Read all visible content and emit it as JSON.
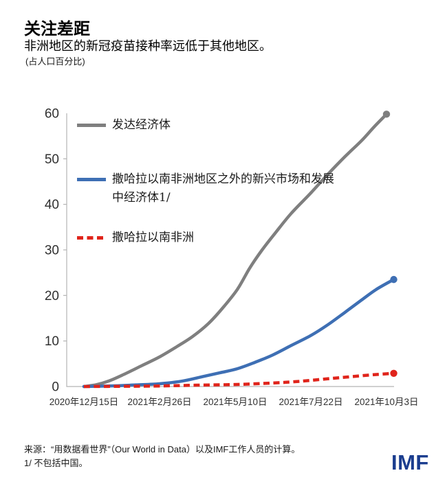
{
  "chart_data": {
    "type": "line",
    "title": "关注差距",
    "subtitle": "非洲地区的新冠疫苗接种率远低于其他地区。",
    "unit_label": "(占人口百分比)",
    "grid": false,
    "legend_position": "inside-top-left",
    "x_axis": {
      "unit": "days since 2020-12-15",
      "ticks": [
        {
          "day": 0,
          "label": "2020年12月15日"
        },
        {
          "day": 73,
          "label": "2021年2月26日"
        },
        {
          "day": 146,
          "label": "2021年5月10日"
        },
        {
          "day": 219,
          "label": "2021年7月22日"
        },
        {
          "day": 292,
          "label": "2021年10月3日"
        }
      ]
    },
    "y_axis": {
      "ticks": [
        0,
        10,
        20,
        30,
        40,
        50,
        60
      ],
      "lim": [
        0,
        60
      ]
    },
    "axis_color": "#b3b3b3",
    "series": [
      {
        "key": "advanced-economies",
        "name": "发达经济体",
        "color": "#7f7f7f",
        "style": "solid",
        "end_value": 59.8,
        "points": [
          [
            0,
            0
          ],
          [
            12,
            0.4
          ],
          [
            24,
            1.2
          ],
          [
            38,
            2.6
          ],
          [
            56,
            4.6
          ],
          [
            73,
            6.5
          ],
          [
            90,
            8.8
          ],
          [
            105,
            11
          ],
          [
            120,
            13.8
          ],
          [
            133,
            17
          ],
          [
            148,
            21.3
          ],
          [
            160,
            26
          ],
          [
            172,
            30
          ],
          [
            185,
            33.8
          ],
          [
            200,
            38
          ],
          [
            219,
            42.5
          ],
          [
            235,
            46.5
          ],
          [
            252,
            50.5
          ],
          [
            268,
            54
          ],
          [
            280,
            57
          ],
          [
            292,
            59.8
          ]
        ]
      },
      {
        "key": "emde-excl-ssa",
        "name": "撒哈拉以南非洲地区之外的新兴市场和发展中经济体1/",
        "color": "#3e6fb4",
        "style": "solid",
        "end_value": 23.5,
        "points": [
          [
            0,
            0
          ],
          [
            30,
            0.15
          ],
          [
            50,
            0.35
          ],
          [
            73,
            0.6
          ],
          [
            95,
            1.2
          ],
          [
            115,
            2.2
          ],
          [
            131,
            3
          ],
          [
            148,
            3.9
          ],
          [
            165,
            5.3
          ],
          [
            182,
            6.9
          ],
          [
            200,
            9
          ],
          [
            219,
            11.2
          ],
          [
            235,
            13.5
          ],
          [
            252,
            16.3
          ],
          [
            268,
            19
          ],
          [
            282,
            21.3
          ],
          [
            299,
            23.5
          ]
        ]
      },
      {
        "key": "sub-saharan-africa",
        "name": "撒哈拉以南非洲",
        "color": "#e0241b",
        "style": "dashed",
        "end_value": 2.9,
        "points": [
          [
            0,
            0
          ],
          [
            40,
            0.05
          ],
          [
            73,
            0.12
          ],
          [
            110,
            0.3
          ],
          [
            148,
            0.45
          ],
          [
            180,
            0.75
          ],
          [
            200,
            1
          ],
          [
            219,
            1.35
          ],
          [
            240,
            1.8
          ],
          [
            260,
            2.2
          ],
          [
            280,
            2.6
          ],
          [
            299,
            2.9
          ]
        ]
      }
    ]
  },
  "legend": {
    "items": [
      {
        "label": "发达经济体"
      },
      {
        "label": "撒哈拉以南非洲地区之外的新兴市场和发展\n中经济体1/"
      },
      {
        "label": "撒哈拉以南非洲"
      }
    ]
  },
  "footer": {
    "source": "来源：“用数据看世界”（Our World in Data）以及IMF工作人员的计算。",
    "note": "1/ 不包括中国。"
  },
  "branding": {
    "logo_text": "IMF",
    "logo_color": "#1b3d8f"
  }
}
